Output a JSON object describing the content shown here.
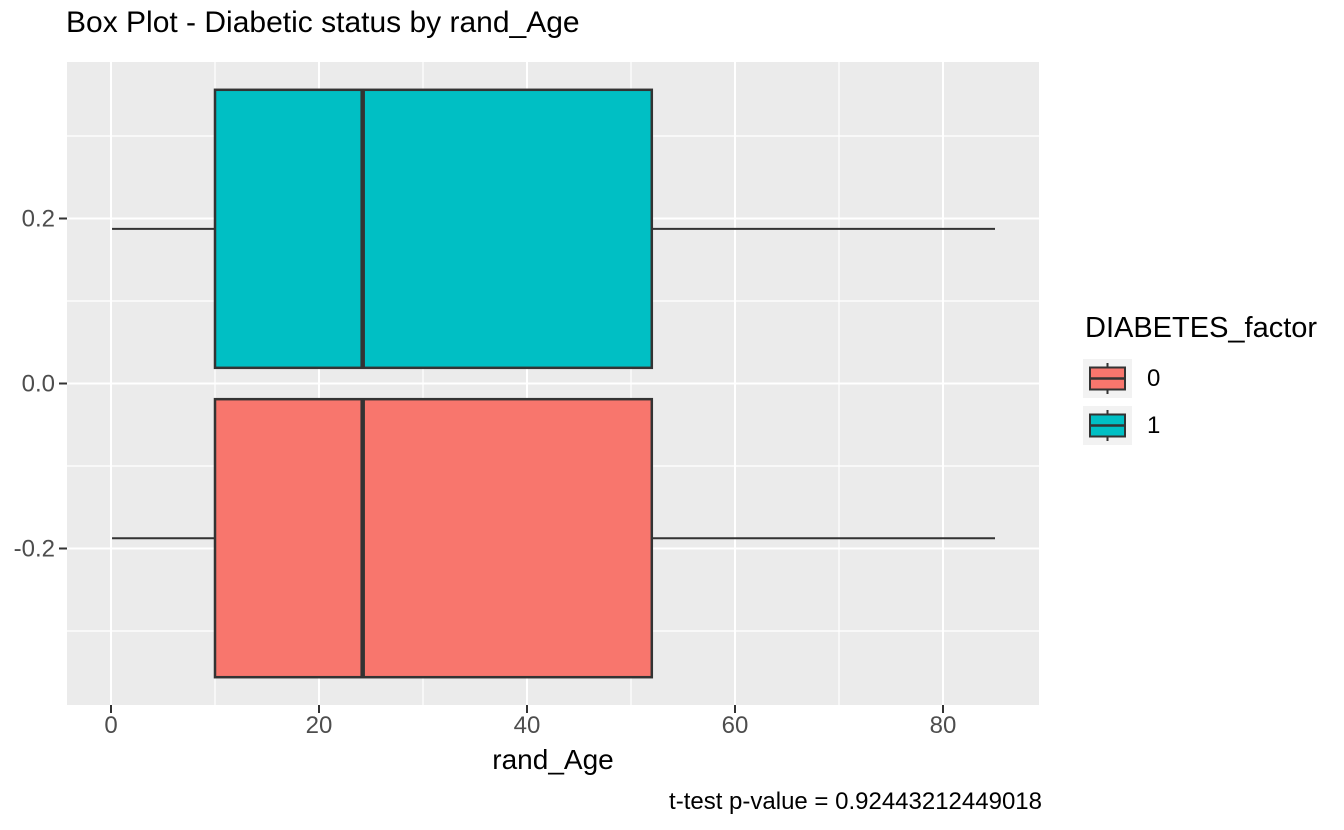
{
  "chart_data": {
    "type": "boxplot",
    "orientation": "horizontal",
    "title": "Box Plot - Diabetic status by rand_Age",
    "xlabel": "rand_Age",
    "ylabel": "",
    "caption": "t-test p-value = 0.92443212449018",
    "panel_bg": "#EBEBEB",
    "grid_color": "#FFFFFF",
    "grid": "on",
    "stroke_color": "#333333",
    "tick_label_color": "#4D4D4D",
    "x_ticks": [
      0,
      20,
      40,
      60,
      80
    ],
    "x_tick_labels": [
      "0",
      "20",
      "40",
      "60",
      "80"
    ],
    "x_minor_ticks": [
      10,
      30,
      50,
      70
    ],
    "xlim": [
      -4.2,
      89.3
    ],
    "y_ticks": [
      0.2,
      0.0,
      -0.2
    ],
    "y_tick_labels": [
      "0.2",
      "0.0",
      "-0.2"
    ],
    "y_minor_ticks": [
      0.3,
      0.1,
      -0.1,
      -0.3
    ],
    "ylim": [
      -0.39,
      0.39
    ],
    "series": [
      {
        "name": "0",
        "color": "#F8766D",
        "y_center": -0.1875,
        "box_half_height": 0.1685,
        "min": 0.1,
        "q1": 10,
        "median": 24.2,
        "q3": 52,
        "max": 85
      },
      {
        "name": "1",
        "color": "#00BFC4",
        "y_center": 0.1875,
        "box_half_height": 0.1685,
        "min": 0.1,
        "q1": 10,
        "median": 24.2,
        "q3": 52,
        "max": 85
      }
    ],
    "legend_position": "right"
  },
  "legend": {
    "title": "DIABETES_factor",
    "key_bg": "#F2F2F2",
    "entries": [
      {
        "label": "0",
        "color": "#F8766D"
      },
      {
        "label": "1",
        "color": "#00BFC4"
      }
    ]
  }
}
